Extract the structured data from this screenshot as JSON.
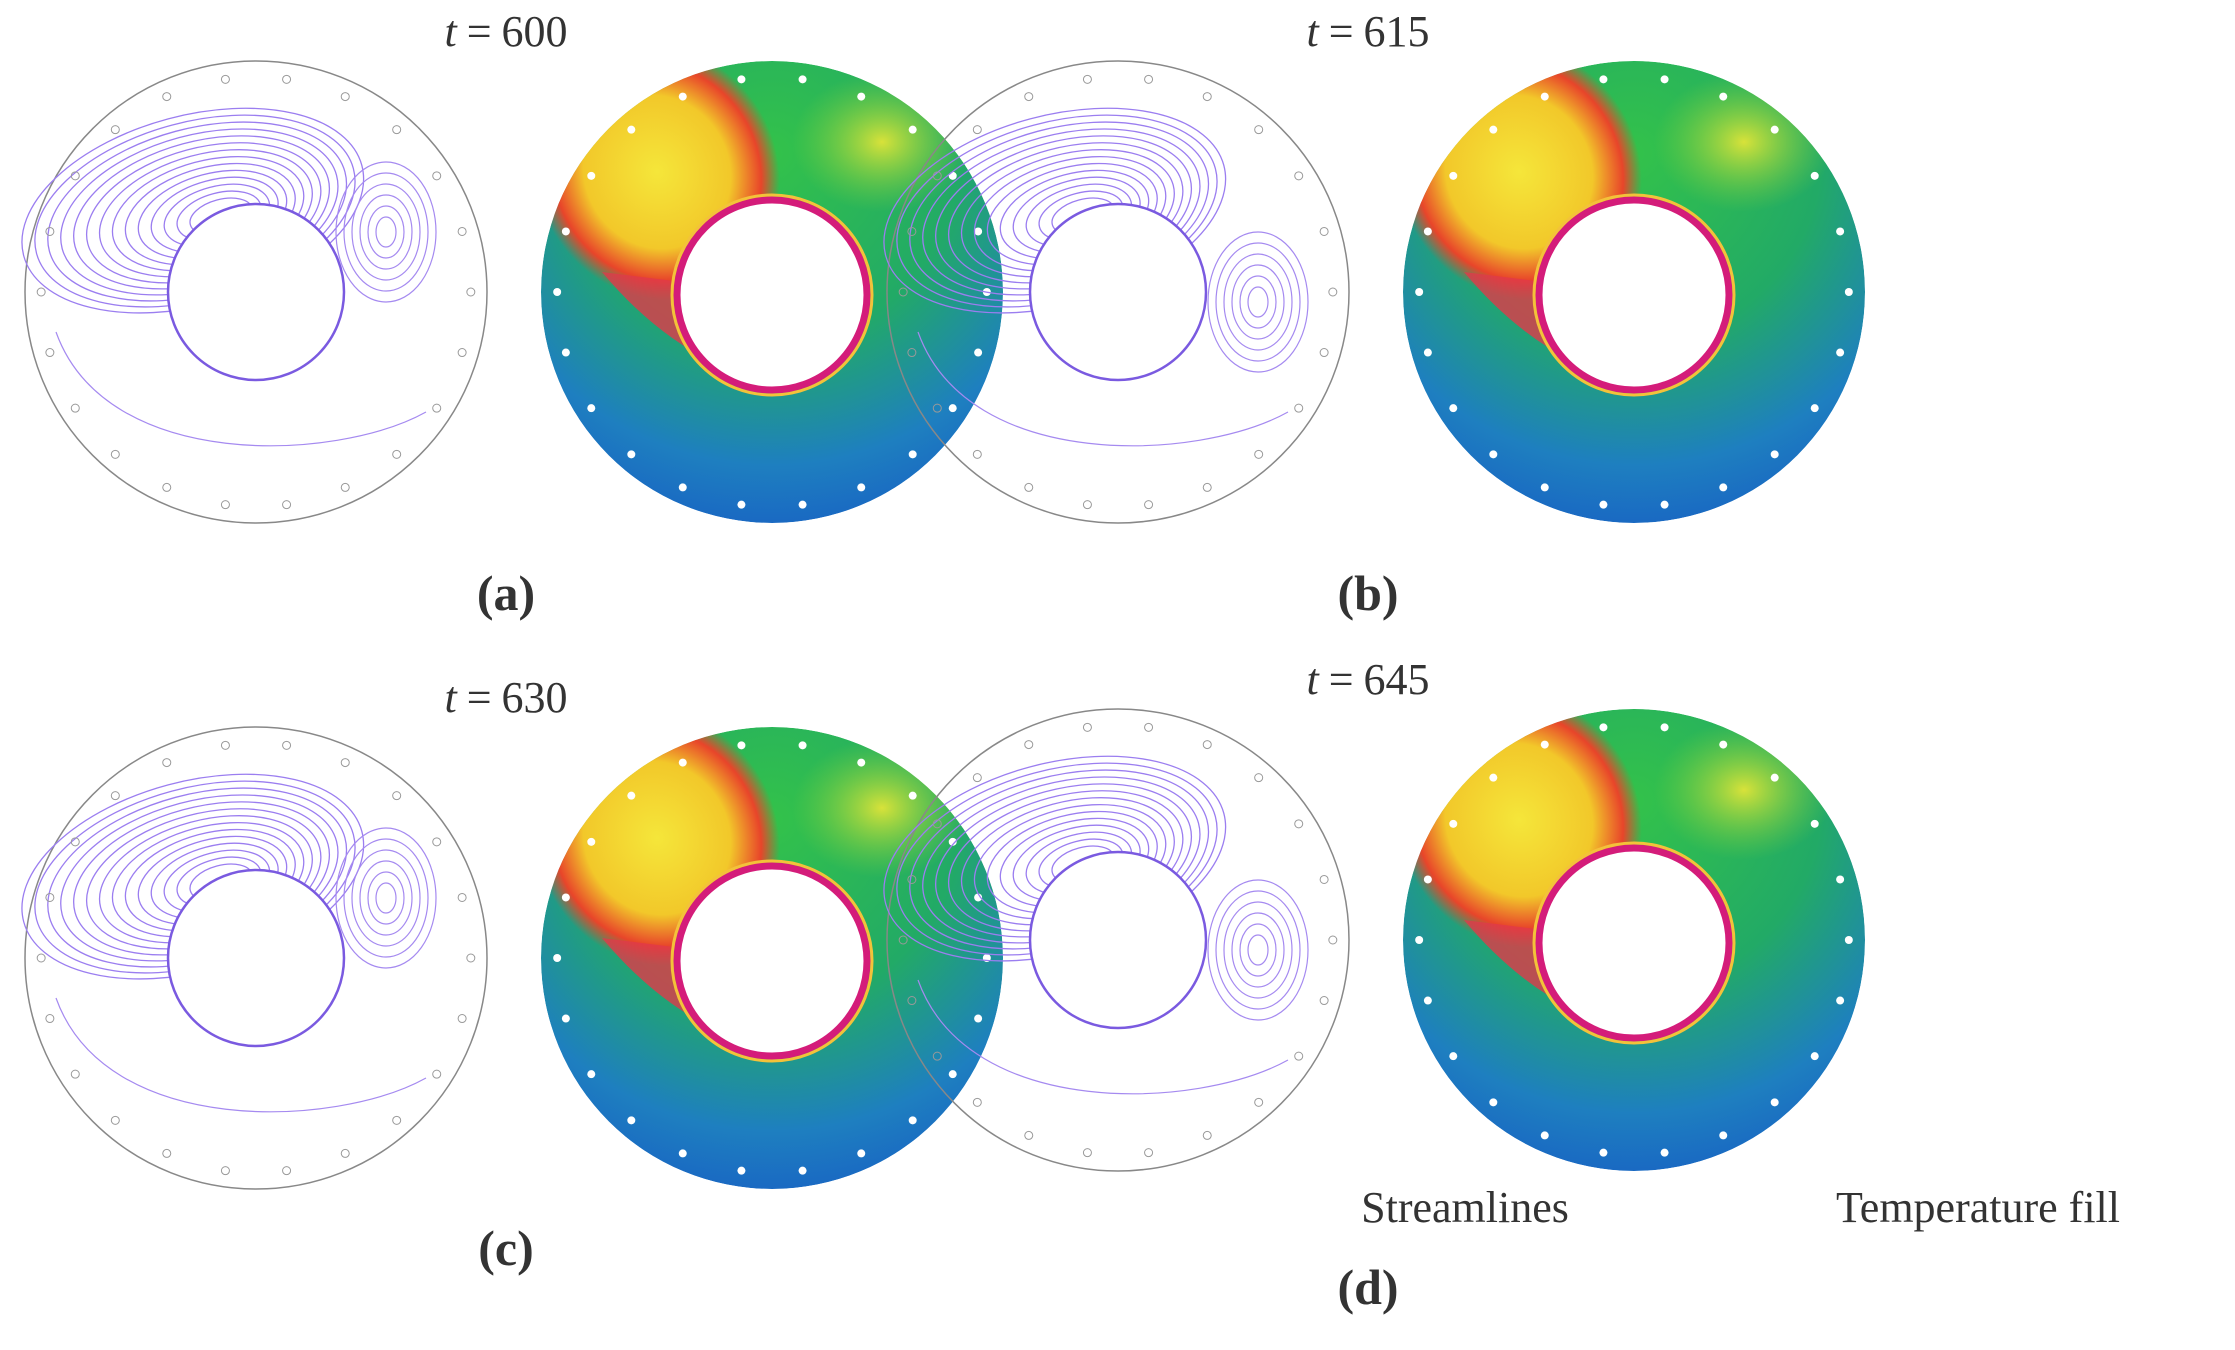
{
  "panels": [
    {
      "variable": "t",
      "equals": "=",
      "time": 600,
      "label": "(a)"
    },
    {
      "variable": "t",
      "equals": "=",
      "time": 615,
      "label": "(b)"
    },
    {
      "variable": "t",
      "equals": "=",
      "time": 630,
      "label": "(c)"
    },
    {
      "variable": "t",
      "equals": "=",
      "time": 645,
      "label": "(d)"
    }
  ],
  "captions": {
    "streamlines": "Streamlines",
    "temperature": "Temperature fill"
  }
}
